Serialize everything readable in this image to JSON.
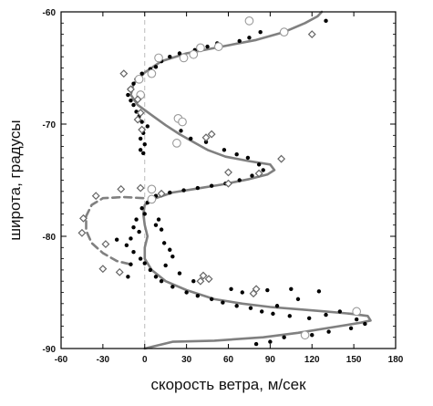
{
  "chart_data": {
    "type": "scatter",
    "title": "",
    "xlabel": "скорость ветра, м/сек",
    "ylabel": "широта, градусы",
    "xlim": [
      -60,
      180
    ],
    "ylim": [
      -90,
      -60
    ],
    "x_ticks": [
      -60,
      -30,
      0,
      30,
      60,
      90,
      120,
      150,
      180
    ],
    "x_tick_labels": [
      "-60",
      "-30",
      "0",
      "30",
      "60",
      "90",
      "120",
      "150",
      "180"
    ],
    "y_ticks": [
      -60,
      -70,
      -80,
      -90
    ],
    "y_tick_labels": [
      "-60",
      "-70",
      "-80",
      "-90"
    ],
    "grid": false,
    "zero_line": {
      "x": 0,
      "style": "dashed",
      "color": "#bbbbbb"
    },
    "colors": {
      "curve": "#808080",
      "dots": "#000000",
      "circles": "#999999",
      "diamonds": "#666666",
      "frame": "#000000"
    },
    "series": [
      {
        "marker": "curve",
        "points": [
          [
            0,
            -90
          ],
          [
            20,
            -89.4
          ],
          [
            50,
            -89.3
          ],
          [
            85,
            -89.0
          ],
          [
            110,
            -88.6
          ],
          [
            135,
            -88.1
          ],
          [
            155,
            -87.7
          ],
          [
            162,
            -87.5
          ],
          [
            160,
            -87.1
          ],
          [
            148,
            -86.9
          ],
          [
            130,
            -86.7
          ],
          [
            110,
            -86.5
          ],
          [
            90,
            -86.3
          ],
          [
            70,
            -86.0
          ],
          [
            50,
            -85.6
          ],
          [
            30,
            -84.8
          ],
          [
            15,
            -84.0
          ],
          [
            5,
            -83.0
          ],
          [
            0,
            -82.0
          ],
          [
            0,
            -81.0
          ],
          [
            2,
            -80.0
          ],
          [
            0,
            -79.0
          ],
          [
            -1,
            -78.0
          ],
          [
            0,
            -77.2
          ],
          [
            8,
            -76.6
          ],
          [
            20,
            -76.1
          ],
          [
            35,
            -75.8
          ],
          [
            55,
            -75.4
          ],
          [
            75,
            -74.9
          ],
          [
            88,
            -74.5
          ],
          [
            93,
            -74.1
          ],
          [
            90,
            -73.6
          ],
          [
            75,
            -73.3
          ],
          [
            58,
            -72.9
          ],
          [
            45,
            -72.3
          ],
          [
            35,
            -71.6
          ],
          [
            25,
            -70.9
          ],
          [
            15,
            -70.1
          ],
          [
            5,
            -69.2
          ],
          [
            -5,
            -68.3
          ],
          [
            -10,
            -67.4
          ],
          [
            -8,
            -66.4
          ],
          [
            0,
            -65.4
          ],
          [
            12,
            -64.4
          ],
          [
            30,
            -63.7
          ],
          [
            55,
            -63.1
          ],
          [
            80,
            -62.5
          ],
          [
            100,
            -61.8
          ],
          [
            115,
            -61.0
          ],
          [
            124,
            -60.4
          ],
          [
            127,
            -60.0
          ]
        ]
      },
      {
        "marker": "dashed",
        "points": [
          [
            -1,
            -76.6
          ],
          [
            -15,
            -76.5
          ],
          [
            -30,
            -76.6
          ],
          [
            -38,
            -77.2
          ],
          [
            -42,
            -78.2
          ],
          [
            -42,
            -79.5
          ],
          [
            -38,
            -80.6
          ],
          [
            -30,
            -81.5
          ],
          [
            -20,
            -82.2
          ],
          [
            -10,
            -82.5
          ]
        ]
      },
      {
        "marker": "dot",
        "points": [
          [
            130,
            -60.8
          ],
          [
            83,
            -61.8
          ],
          [
            75,
            -62.3
          ],
          [
            68,
            -62.6
          ],
          [
            52,
            -62.8
          ],
          [
            45,
            -63.1
          ],
          [
            36,
            -63.4
          ],
          [
            25,
            -63.7
          ],
          [
            18,
            -64.0
          ],
          [
            12,
            -64.4
          ],
          [
            8,
            -64.9
          ],
          [
            4,
            -65.1
          ],
          [
            -2,
            -65.5
          ],
          [
            -6,
            -66.0
          ],
          [
            -8,
            -66.4
          ],
          [
            -11,
            -66.9
          ],
          [
            -12,
            -67.4
          ],
          [
            -10,
            -67.9
          ],
          [
            -8,
            -68.3
          ],
          [
            -6,
            -68.9
          ],
          [
            -4,
            -69.3
          ],
          [
            -2,
            -69.8
          ],
          [
            2,
            -70.2
          ],
          [
            -1,
            -70.8
          ],
          [
            -3,
            -71.3
          ],
          [
            0,
            -71.8
          ],
          [
            -3,
            -72.3
          ],
          [
            -1,
            -72.6
          ],
          [
            26,
            -70.6
          ],
          [
            33,
            -71.3
          ],
          [
            44,
            -71.6
          ],
          [
            57,
            -72.3
          ],
          [
            66,
            -72.7
          ],
          [
            74,
            -73.0
          ],
          [
            82,
            -73.6
          ],
          [
            85,
            -74.1
          ],
          [
            77,
            -74.6
          ],
          [
            68,
            -75.0
          ],
          [
            58,
            -75.3
          ],
          [
            48,
            -75.5
          ],
          [
            38,
            -75.7
          ],
          [
            28,
            -75.9
          ],
          [
            18,
            -76.1
          ],
          [
            8,
            -76.4
          ],
          [
            2,
            -77.0
          ],
          [
            -2,
            -77.5
          ],
          [
            0,
            -78.0
          ],
          [
            -6,
            -78.5
          ],
          [
            -8,
            -79.2
          ],
          [
            -4,
            -79.6
          ],
          [
            -10,
            -80.2
          ],
          [
            -13,
            -80.8
          ],
          [
            -8,
            -81.4
          ],
          [
            -3,
            -82.0
          ],
          [
            0,
            -82.4
          ],
          [
            4,
            -83.0
          ],
          [
            8,
            -83.6
          ],
          [
            12,
            -84.0
          ],
          [
            20,
            -84.5
          ],
          [
            30,
            -85.0
          ],
          [
            38,
            -85.3
          ],
          [
            48,
            -85.6
          ],
          [
            56,
            -85.9
          ],
          [
            66,
            -86.2
          ],
          [
            76,
            -86.4
          ],
          [
            84,
            -86.7
          ],
          [
            92,
            -86.9
          ],
          [
            104,
            -87.1
          ],
          [
            118,
            -87.3
          ],
          [
            130,
            -87.0
          ],
          [
            140,
            -86.7
          ],
          [
            152,
            -87.4
          ],
          [
            158,
            -87.8
          ],
          [
            148,
            -88.2
          ],
          [
            132,
            -88.5
          ],
          [
            120,
            -88.8
          ],
          [
            100,
            -89.0
          ],
          [
            90,
            -89.4
          ],
          [
            80,
            -89.6
          ],
          [
            10,
            -78.5
          ],
          [
            8,
            -79.0
          ],
          [
            12,
            -79.4
          ],
          [
            14,
            -80.6
          ],
          [
            18,
            -81.2
          ],
          [
            20,
            -81.8
          ],
          [
            15,
            -82.6
          ],
          [
            25,
            -83.3
          ],
          [
            35,
            -84.0
          ],
          [
            -12,
            -83.6
          ],
          [
            -10,
            -82.5
          ],
          [
            -20,
            -80.3
          ],
          [
            62,
            -84.7
          ],
          [
            70,
            -85.0
          ],
          [
            110,
            -85.6
          ],
          [
            95,
            -86.2
          ],
          [
            88,
            -84.8
          ],
          [
            105,
            -84.7
          ],
          [
            125,
            -84.9
          ]
        ]
      },
      {
        "marker": "circle",
        "points": [
          [
            75,
            -60.8
          ],
          [
            100,
            -61.8
          ],
          [
            53,
            -63.1
          ],
          [
            35,
            -63.8
          ],
          [
            40,
            -63.2
          ],
          [
            28,
            -64.1
          ],
          [
            10,
            -64.1
          ],
          [
            5,
            -65.5
          ],
          [
            -4,
            -66.0
          ],
          [
            -3,
            -67.4
          ],
          [
            24,
            -69.5
          ],
          [
            27,
            -69.8
          ],
          [
            23,
            -71.7
          ],
          [
            5,
            -75.8
          ],
          [
            5,
            -76.7
          ],
          [
            152,
            -86.7
          ],
          [
            115,
            -88.8
          ]
        ]
      },
      {
        "marker": "diamond",
        "points": [
          [
            120,
            -62
          ],
          [
            -15,
            -65.5
          ],
          [
            -10,
            -66.9
          ],
          [
            -5,
            -67.8
          ],
          [
            -3,
            -69.0
          ],
          [
            -5,
            -69.6
          ],
          [
            -2,
            -70.5
          ],
          [
            48,
            -70.9
          ],
          [
            44,
            -71.2
          ],
          [
            98,
            -73.1
          ],
          [
            60,
            -74.3
          ],
          [
            82,
            -74.4
          ],
          [
            60,
            -75.3
          ],
          [
            -3,
            -75.7
          ],
          [
            -17,
            -75.8
          ],
          [
            12,
            -76.2
          ],
          [
            -35,
            -76.4
          ],
          [
            -44,
            -78.4
          ],
          [
            -45,
            -79.7
          ],
          [
            -28,
            -80.7
          ],
          [
            -30,
            -82.9
          ],
          [
            -18,
            -83.2
          ],
          [
            42,
            -83.5
          ],
          [
            46,
            -83.8
          ],
          [
            40,
            -84.0
          ],
          [
            80,
            -84.7
          ],
          [
            78,
            -85.1
          ]
        ]
      }
    ]
  }
}
